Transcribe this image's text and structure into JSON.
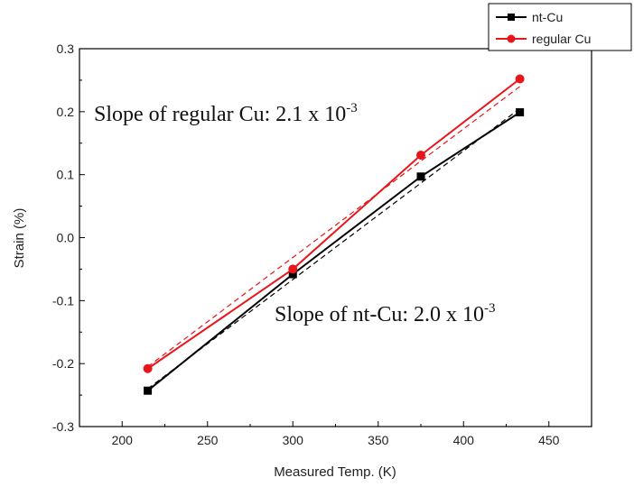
{
  "chart_data": {
    "type": "line",
    "title": "",
    "xlabel": "Measured Temp. (K)",
    "ylabel": "Strain (%)",
    "xlim": [
      175,
      475
    ],
    "ylim": [
      -0.3,
      0.3
    ],
    "x_ticks": [
      200,
      250,
      300,
      350,
      400,
      450
    ],
    "y_ticks": [
      -0.3,
      -0.2,
      -0.1,
      0.0,
      0.1,
      0.2,
      0.3
    ],
    "x_tick_labels": [
      "200",
      "250",
      "300",
      "350",
      "400",
      "450"
    ],
    "y_tick_labels": [
      "-0.3",
      "-0.2",
      "-0.1",
      "0.0",
      "0.1",
      "0.2",
      "0.3"
    ],
    "grid": false,
    "legend_position": "top-right",
    "series": [
      {
        "name": "nt-Cu",
        "color": "#000000",
        "marker": "square",
        "x": [
          215,
          300,
          375,
          433
        ],
        "y": [
          -0.243,
          -0.058,
          0.097,
          0.199
        ]
      },
      {
        "name": "regular Cu",
        "color": "#e8161b",
        "marker": "circle",
        "x": [
          215,
          300,
          375,
          433
        ],
        "y": [
          -0.208,
          -0.05,
          0.131,
          0.252
        ]
      }
    ],
    "fit_lines": [
      {
        "color": "#000000",
        "style": "dashed",
        "x": [
          215,
          433
        ],
        "y": [
          -0.24,
          0.205
        ]
      },
      {
        "color": "#e8161b",
        "style": "dashed",
        "x": [
          215,
          433
        ],
        "y": [
          -0.205,
          0.24
        ]
      }
    ],
    "annotations": [
      {
        "text": "Slope of regular Cu: 2.1 x 10",
        "superscript": "-3"
      },
      {
        "text": "Slope of nt-Cu: 2.0 x 10",
        "superscript": "-3"
      }
    ]
  }
}
